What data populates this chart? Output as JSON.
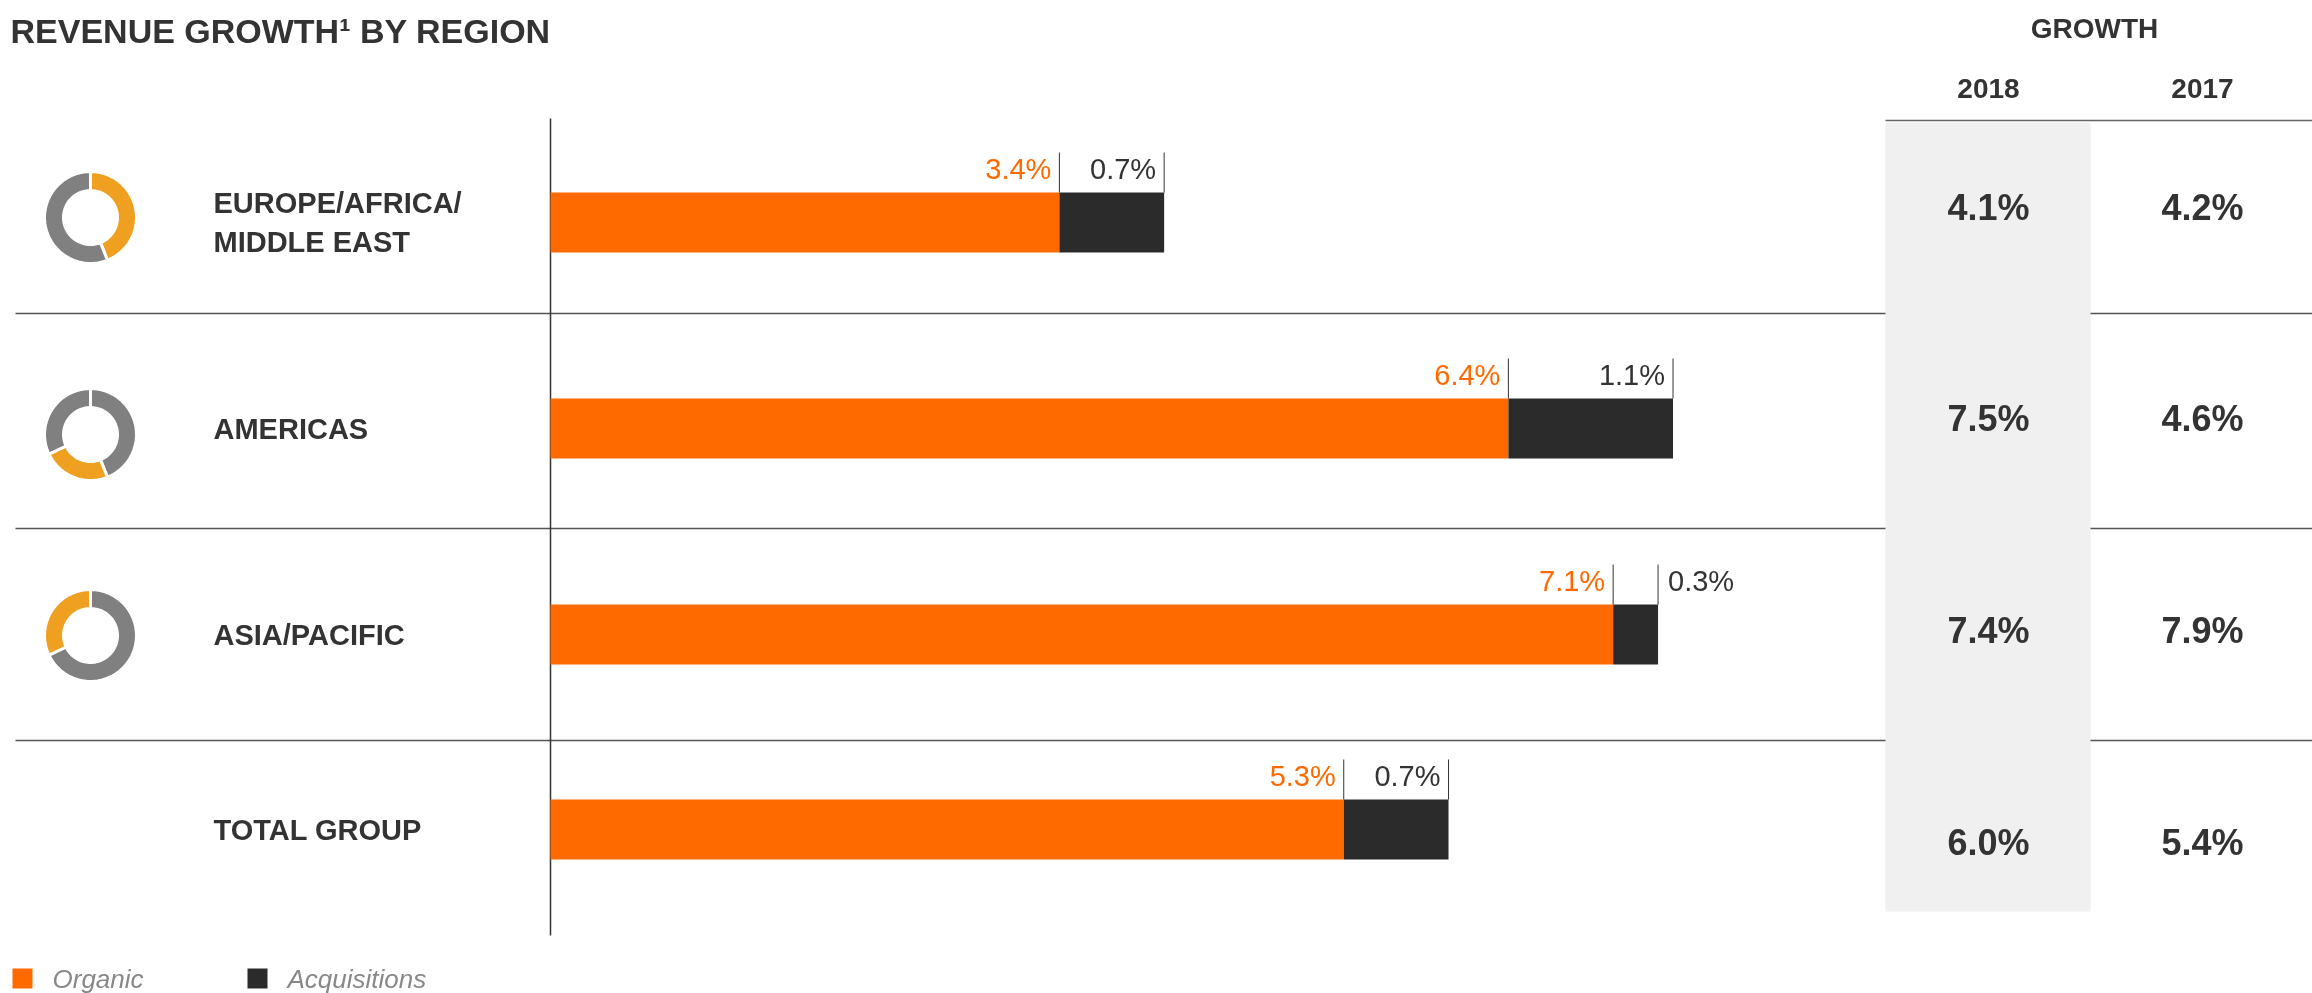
{
  "chart_data": [
    {
      "type": "bar",
      "title": "REVENUE GROWTH¹ BY REGION",
      "orientation": "horizontal",
      "stacked": true,
      "categories": [
        "EUROPE/AFRICA/MIDDLE EAST",
        "AMERICAS",
        "ASIA/PACIFIC",
        "TOTAL GROUP"
      ],
      "series": [
        {
          "name": "Organic",
          "color": "#ff6a00",
          "values": [
            3.4,
            6.4,
            7.1,
            5.3
          ],
          "value_labels": [
            "3.4%",
            "6.4%",
            "7.1%",
            "5.3%"
          ]
        },
        {
          "name": "Acquisitions",
          "color": "#2b2b2b",
          "values": [
            0.7,
            1.1,
            0.3,
            0.7
          ],
          "value_labels": [
            "0.7%",
            "1.1%",
            "0.3%",
            "0.7%"
          ]
        }
      ],
      "tick_labels": "y",
      "legend": "bottom",
      "annotations": [
        "GROWTH",
        "2018",
        "2017",
        "4.1%",
        "4.2%",
        "7.5%",
        "4.6%",
        "7.4%",
        "7.9%",
        "6.0%",
        "5.4%"
      ]
    },
    {
      "type": "donut",
      "categories": [
        null,
        null
      ],
      "values": [
        44,
        56
      ],
      "colors": [
        "#f0a020",
        "#808080"
      ]
    },
    {
      "type": "donut",
      "categories": [
        null,
        null,
        null
      ],
      "values": [
        44,
        24,
        32
      ],
      "colors": [
        "#808080",
        "#f0a020",
        "#808080"
      ]
    },
    {
      "type": "donut",
      "categories": [
        null,
        null
      ],
      "values": [
        68,
        32
      ],
      "colors": [
        "#808080",
        "#f0a020"
      ]
    }
  ]
}
